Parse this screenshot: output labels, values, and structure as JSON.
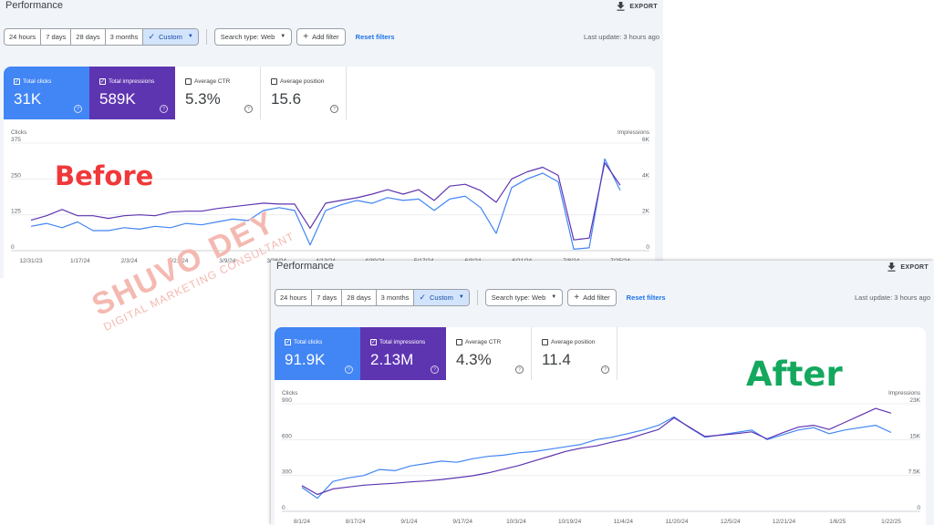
{
  "before": {
    "header": {
      "title": "Performance",
      "export_label": "EXPORT",
      "export_icon": "download-icon"
    },
    "toolbar": {
      "ranges": [
        "24 hours",
        "7 days",
        "28 days",
        "3 months"
      ],
      "custom_label": "Custom",
      "search_type_label": "Search type: Web",
      "add_filter_label": "Add filter",
      "reset_label": "Reset filters",
      "last_update": "Last update: 3 hours ago"
    },
    "metrics": [
      {
        "label": "Total clicks",
        "value": "31K",
        "checked": true,
        "color": "#4285f4"
      },
      {
        "label": "Total impressions",
        "value": "589K",
        "checked": true,
        "color": "#5e35b1"
      },
      {
        "label": "Average CTR",
        "value": "5.3%",
        "checked": false
      },
      {
        "label": "Average position",
        "value": "15.6",
        "checked": false
      }
    ],
    "chart_data": {
      "type": "line",
      "left_axis_label": "Clicks",
      "right_axis_label": "Impressions",
      "left_ticks": [
        "375",
        "250",
        "125",
        "0"
      ],
      "right_ticks": [
        "6K",
        "4K",
        "2K",
        "0"
      ],
      "left_range": [
        0,
        375
      ],
      "right_range": [
        0,
        6000
      ],
      "x_labels": [
        "12/31/23",
        "1/17/24",
        "2/3/24",
        "2/21/24",
        "3/9/24",
        "3/26/24",
        "4/13/24",
        "4/30/24",
        "5/17/24",
        "6/3/24",
        "6/21/24",
        "7/8/24",
        "7/25/24"
      ],
      "grid": true,
      "series": [
        {
          "key": "clicks",
          "axis": "left",
          "color": "#4285f4",
          "values": [
            85,
            95,
            80,
            100,
            70,
            70,
            80,
            75,
            85,
            80,
            95,
            90,
            100,
            110,
            105,
            140,
            150,
            140,
            20,
            140,
            160,
            175,
            165,
            185,
            175,
            180,
            140,
            180,
            190,
            150,
            60,
            220,
            250,
            270,
            240,
            5,
            10,
            320,
            210
          ]
        },
        {
          "key": "impressions",
          "axis": "right",
          "color": "#5e35b1",
          "values": [
            1700,
            1950,
            2300,
            1950,
            1950,
            1800,
            1950,
            2000,
            1950,
            2150,
            2200,
            2200,
            2350,
            2450,
            2550,
            2650,
            2600,
            2600,
            1250,
            2650,
            2800,
            2950,
            3150,
            3400,
            3150,
            3400,
            2800,
            3600,
            3700,
            3350,
            2700,
            4000,
            4400,
            4650,
            4200,
            600,
            700,
            4900,
            3650
          ]
        }
      ]
    }
  },
  "after": {
    "header": {
      "title": "Performance",
      "export_label": "EXPORT",
      "export_icon": "download-icon"
    },
    "toolbar": {
      "ranges": [
        "24 hours",
        "7 days",
        "28 days",
        "3 months"
      ],
      "custom_label": "Custom",
      "search_type_label": "Search type: Web",
      "add_filter_label": "Add filter",
      "reset_label": "Reset filters",
      "last_update": "Last update: 3 hours ago"
    },
    "metrics": [
      {
        "label": "Total clicks",
        "value": "91.9K",
        "checked": true,
        "color": "#4285f4"
      },
      {
        "label": "Total impressions",
        "value": "2.13M",
        "checked": true,
        "color": "#5e35b1"
      },
      {
        "label": "Average CTR",
        "value": "4.3%",
        "checked": false
      },
      {
        "label": "Average position",
        "value": "11.4",
        "checked": false
      }
    ],
    "chart_data": {
      "type": "line",
      "left_axis_label": "Clicks",
      "right_axis_label": "Impressions",
      "left_ticks": [
        "900",
        "600",
        "300",
        "0"
      ],
      "right_ticks": [
        "23K",
        "15K",
        "7.5K",
        "0"
      ],
      "left_range": [
        0,
        900
      ],
      "right_range": [
        0,
        23000
      ],
      "x_labels": [
        "8/1/24",
        "8/17/24",
        "9/1/24",
        "9/17/24",
        "10/3/24",
        "10/19/24",
        "11/4/24",
        "11/20/24",
        "12/5/24",
        "12/21/24",
        "1/6/25",
        "1/22/25"
      ],
      "grid": true,
      "series": [
        {
          "key": "clicks",
          "axis": "left",
          "color": "#4285f4",
          "values": [
            200,
            110,
            250,
            280,
            300,
            350,
            340,
            380,
            400,
            420,
            410,
            440,
            460,
            470,
            490,
            500,
            520,
            540,
            560,
            600,
            620,
            650,
            680,
            720,
            790,
            700,
            620,
            640,
            660,
            680,
            600,
            640,
            680,
            700,
            650,
            680,
            700,
            720,
            660
          ]
        },
        {
          "key": "impressions",
          "axis": "right",
          "color": "#5e35b1",
          "values": [
            5500,
            3600,
            4800,
            5200,
            5600,
            5800,
            6000,
            6300,
            6500,
            6800,
            7200,
            7600,
            8200,
            9000,
            9800,
            10800,
            11800,
            12800,
            13500,
            14000,
            14800,
            15500,
            16500,
            17500,
            20000,
            18000,
            16000,
            16300,
            16600,
            17000,
            15500,
            16800,
            18000,
            18400,
            17500,
            19000,
            20500,
            22000,
            21000
          ]
        }
      ]
    }
  },
  "overlays": {
    "before_label": "Before",
    "after_label": "After"
  },
  "watermark": {
    "name": "SHUVO DEY",
    "tagline": "DIGITAL MARKETING CONSULTANT"
  }
}
